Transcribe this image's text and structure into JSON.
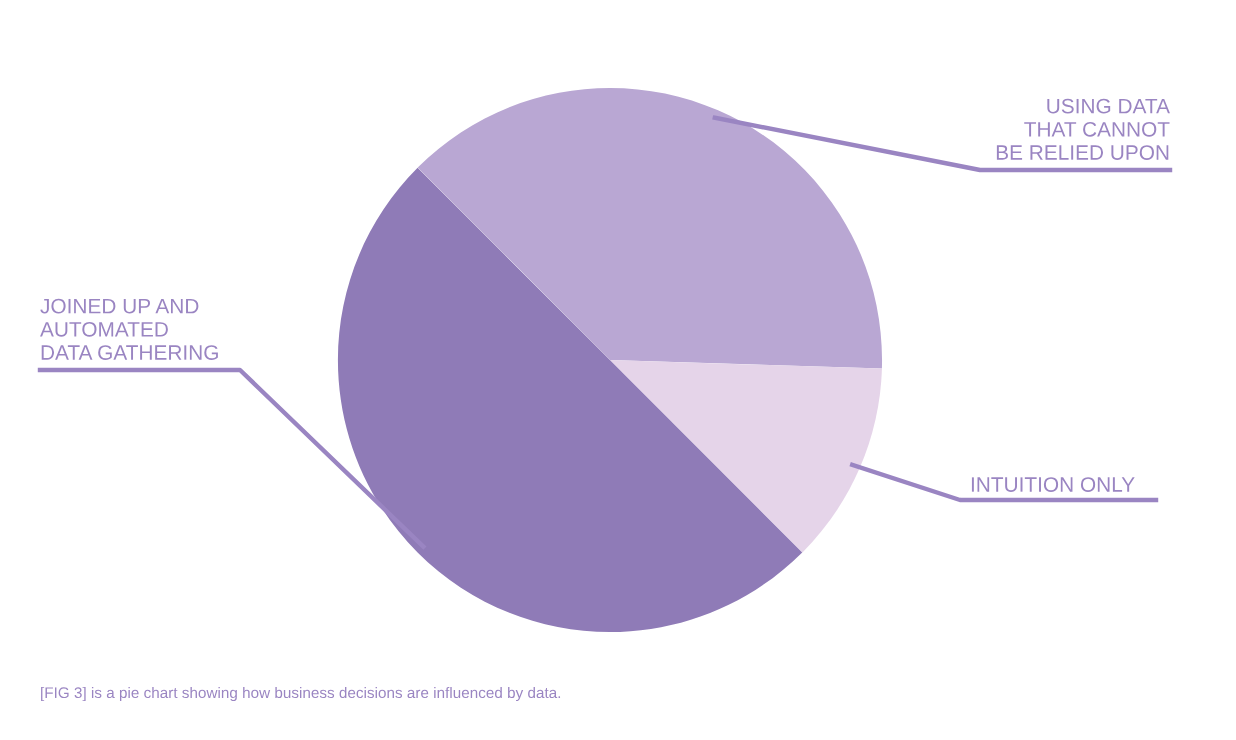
{
  "chart_data": {
    "type": "pie",
    "categories": [
      "USING DATA\nTHAT CANNOT\nBE RELIED UPON",
      "INTUITION ONLY",
      "JOINED UP AND\nAUTOMATED\nDATA GATHERING"
    ],
    "values": [
      38,
      12,
      50
    ],
    "colors": [
      "#b9a7d3",
      "#e5d4e9",
      "#8f7bb7"
    ],
    "annotations": [
      "[FIG 3] is a pie chart showing how business decisions are influenced by data."
    ]
  }
}
